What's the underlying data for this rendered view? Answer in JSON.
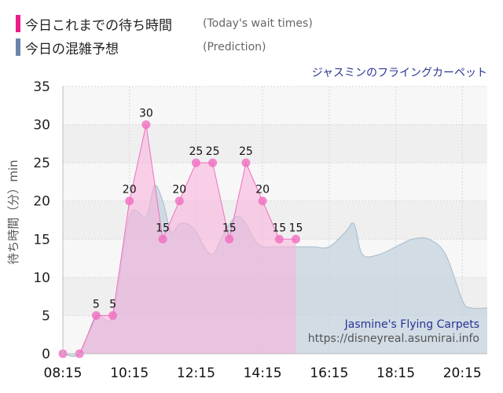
{
  "legend": {
    "actual_title": "今日これまでの待ち時間",
    "actual_sub": "(Today's wait times)",
    "prediction_title": "今日の混雑予想",
    "prediction_sub": "(Prediction)"
  },
  "attraction_name": "ジャスミンのフライングカーペット",
  "credit": {
    "name": "Jasmine's Flying Carpets",
    "url": "https://disneyreal.asumirai.info"
  },
  "colors": {
    "actual": "#f06ec0",
    "actual_fill": "#f8b4dc",
    "prediction": "#a9bccb",
    "prediction_fill": "#c4d3df",
    "actual_swatch": "#e91e8c",
    "prediction_swatch": "#6b84a8"
  },
  "chart_data": {
    "type": "area",
    "ylabel": "待ち時間（分）min",
    "ylim": [
      0,
      35
    ],
    "yticks": [
      0,
      5,
      10,
      15,
      20,
      25,
      30,
      35
    ],
    "xlim": [
      "08:15",
      "21:00"
    ],
    "xticks": [
      "08:15",
      "10:15",
      "12:15",
      "14:15",
      "16:15",
      "18:15",
      "20:15"
    ],
    "grid": true,
    "series": [
      {
        "name": "今日これまでの待ち時間",
        "x": [
          "08:15",
          "08:45",
          "09:15",
          "09:45",
          "10:15",
          "10:45",
          "11:15",
          "11:45",
          "12:15",
          "12:45",
          "13:15",
          "13:45",
          "14:15",
          "14:45",
          "15:15"
        ],
        "values": [
          0,
          0,
          5,
          5,
          20,
          30,
          15,
          20,
          25,
          25,
          15,
          25,
          20,
          15,
          15
        ],
        "labels": [
          "",
          "",
          "5",
          "5",
          "20",
          "30",
          "15",
          "20",
          "25",
          "25",
          "15",
          "25",
          "20",
          "15",
          "15"
        ]
      },
      {
        "name": "今日の混雑予想",
        "x": [
          "08:15",
          "08:45",
          "09:15",
          "09:45",
          "10:15",
          "10:45",
          "11:00",
          "11:15",
          "11:30",
          "11:45",
          "12:00",
          "12:15",
          "12:30",
          "12:45",
          "13:00",
          "13:15",
          "13:30",
          "13:45",
          "14:00",
          "14:15",
          "14:30",
          "14:45",
          "15:00",
          "15:15",
          "15:45",
          "16:15",
          "16:45",
          "17:00",
          "17:15",
          "17:45",
          "18:15",
          "18:45",
          "19:15",
          "19:45",
          "20:15",
          "20:30",
          "21:00"
        ],
        "values": [
          0,
          0,
          5,
          5,
          18,
          18,
          22,
          20,
          16,
          17,
          17,
          16,
          14,
          13,
          15,
          17,
          18,
          17,
          15,
          14,
          14,
          14,
          14,
          14,
          14,
          14,
          16,
          17,
          13,
          13,
          14,
          15,
          15,
          13,
          7,
          6,
          6
        ]
      }
    ]
  }
}
